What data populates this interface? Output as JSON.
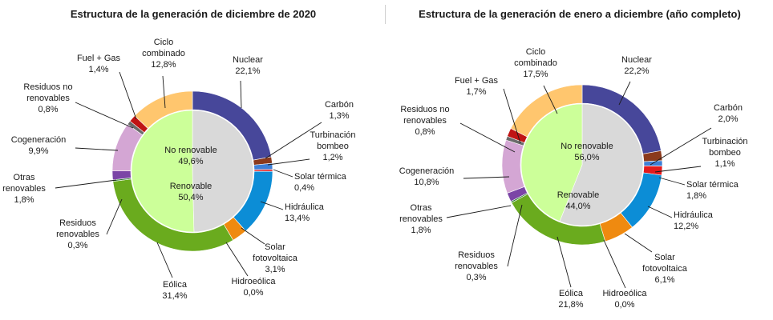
{
  "chart_data": [
    {
      "type": "pie",
      "title": "Estructura de la generación de diciembre de 2020",
      "inner": [
        {
          "name": "No renovable",
          "value": 49.6,
          "label": "49,6%",
          "color": "#d9d9d9"
        },
        {
          "name": "Renovable",
          "value": 50.4,
          "label": "50,4%",
          "color": "#ccff99"
        }
      ],
      "outer": [
        {
          "name": "Nuclear",
          "value": 22.1,
          "label": "22,1%",
          "color": "#47479a"
        },
        {
          "name": "Carbón",
          "value": 1.3,
          "label": "1,3%",
          "color": "#8b3a1c"
        },
        {
          "name": "Turbinación bombeo",
          "value": 1.2,
          "label": "1,2%",
          "color": "#3d7fd6"
        },
        {
          "name": "Solar térmica",
          "value": 0.4,
          "label": "0,4%",
          "color": "#e31a1c"
        },
        {
          "name": "Hidráulica",
          "value": 13.4,
          "label": "13,4%",
          "color": "#0c8dd6"
        },
        {
          "name": "Solar fotovoltaica",
          "value": 3.1,
          "label": "3,1%",
          "color": "#ef8a10"
        },
        {
          "name": "Hidroeólica",
          "value": 0.0,
          "label": "0,0%",
          "color": "#2c6e2c"
        },
        {
          "name": "Eólica",
          "value": 31.4,
          "label": "31,4%",
          "color": "#6aab1e"
        },
        {
          "name": "Residuos renovables",
          "value": 0.3,
          "label": "0,3%",
          "color": "#2e7d32"
        },
        {
          "name": "Otras renovables",
          "value": 1.8,
          "label": "1,8%",
          "color": "#7b45a6"
        },
        {
          "name": "Cogeneración",
          "value": 9.9,
          "label": "9,9%",
          "color": "#d4a6d4"
        },
        {
          "name": "Residuos no renovables",
          "value": 0.8,
          "label": "0,8%",
          "color": "#6b6b6b"
        },
        {
          "name": "Fuel + Gas",
          "value": 1.4,
          "label": "1,4%",
          "color": "#c01414"
        },
        {
          "name": "Ciclo combinado",
          "value": 12.8,
          "label": "12,8%",
          "color": "#ffc66e"
        }
      ]
    },
    {
      "type": "pie",
      "title": "Estructura de la generación de enero a diciembre (año completo)",
      "inner": [
        {
          "name": "No renovable",
          "value": 56.0,
          "label": "56,0%",
          "color": "#d9d9d9"
        },
        {
          "name": "Renovable",
          "value": 44.0,
          "label": "44,0%",
          "color": "#ccff99"
        }
      ],
      "outer": [
        {
          "name": "Nuclear",
          "value": 22.2,
          "label": "22,2%",
          "color": "#47479a"
        },
        {
          "name": "Carbón",
          "value": 2.0,
          "label": "2,0%",
          "color": "#8b3a1c"
        },
        {
          "name": "Turbinación bombeo",
          "value": 1.1,
          "label": "1,1%",
          "color": "#3d7fd6"
        },
        {
          "name": "Solar térmica",
          "value": 1.8,
          "label": "1,8%",
          "color": "#e31a1c"
        },
        {
          "name": "Hidráulica",
          "value": 12.2,
          "label": "12,2%",
          "color": "#0c8dd6"
        },
        {
          "name": "Solar fotovoltaica",
          "value": 6.1,
          "label": "6,1%",
          "color": "#ef8a10"
        },
        {
          "name": "Hidroeólica",
          "value": 0.0,
          "label": "0,0%",
          "color": "#2c6e2c"
        },
        {
          "name": "Eólica",
          "value": 21.8,
          "label": "21,8%",
          "color": "#6aab1e"
        },
        {
          "name": "Residuos renovables",
          "value": 0.3,
          "label": "0,3%",
          "color": "#2e7d32"
        },
        {
          "name": "Otras renovables",
          "value": 1.8,
          "label": "1,8%",
          "color": "#7b45a6"
        },
        {
          "name": "Cogeneración",
          "value": 10.8,
          "label": "10,8%",
          "color": "#d4a6d4"
        },
        {
          "name": "Residuos no renovables",
          "value": 0.8,
          "label": "0,8%",
          "color": "#6b6b6b"
        },
        {
          "name": "Fuel + Gas",
          "value": 1.7,
          "label": "1,7%",
          "color": "#c01414"
        },
        {
          "name": "Ciclo combinado",
          "value": 17.5,
          "label": "17,5%",
          "color": "#ffc66e"
        }
      ]
    }
  ]
}
